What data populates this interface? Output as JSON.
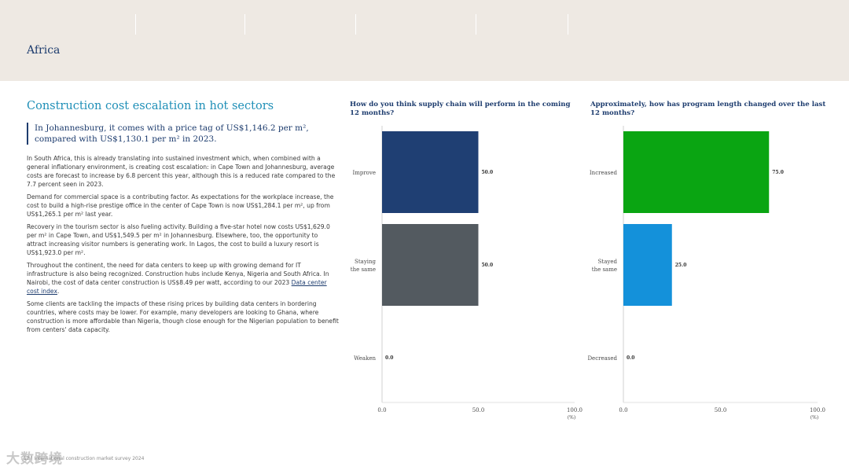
{
  "header": {
    "region": "Africa"
  },
  "article": {
    "section_title": "Construction cost escalation in hot sectors",
    "pull_quote": "In Johannesburg, it comes with a price tag of US$1,146.2 per m², compared with US$1,130.1 per m² in 2023.",
    "paragraphs": [
      "In South Africa, this is already translating into sustained investment which, when combined with a general inflationary environment, is creating cost escalation: in Cape Town and Johannesburg, average costs are forecast to increase by 6.8 percent this year, although this is a reduced rate compared to the 7.7 percent seen in 2023.",
      "Demand for commercial space is a contributing factor. As expectations for the workplace increase, the cost to build a high-rise prestige office in the center of Cape Town is now US$1,284.1 per m², up from US$1,265.1 per m² last year.",
      "Recovery in the tourism sector is also fueling activity. Building a five-star hotel now costs US$1,629.0 per m² in Cape Town, and US$1,549.5 per m² in Johannesburg. Elsewhere, too, the opportunity to attract increasing visitor numbers is generating work. In Lagos, the cost to build a luxury resort is US$1,923.0 per m².",
      "Some clients are tackling the impacts of these rising prices by building data centers in bordering countries, where costs may be lower. For example, many developers are looking to Ghana, where construction is more affordable than Nigeria, though close enough for the Nigerian population to benefit from centers' data capacity."
    ],
    "paragraph_link": {
      "before": "Throughout the continent, the need for data centers to keep up with growing demand for IT infrastructure is also being recognized. Construction hubs include Kenya, Nigeria and South Africa. In Nairobi, the cost of data center construction is US$8.49 per watt, according to our 2023 ",
      "link_text": "Data center cost index",
      "after": "."
    }
  },
  "footer": {
    "text": "12 | International construction market survey 2024",
    "watermark": "大数跨境"
  },
  "chart_data": [
    {
      "type": "bar",
      "orientation": "horizontal",
      "title": "How do you think supply chain will perform  in the coming 12 months?",
      "categories": [
        "Improve",
        "Staying the same",
        "Weaken"
      ],
      "category_lines": [
        [
          "Improve"
        ],
        [
          "Staying",
          "the same"
        ],
        [
          "Weaken"
        ]
      ],
      "values": [
        50.0,
        50.0,
        0.0
      ],
      "colors": [
        "#1f3f73",
        "#535a60",
        "#1f3f73"
      ],
      "xlim": [
        0,
        100
      ],
      "xticks": [
        0.0,
        50.0,
        100.0
      ],
      "unit": "(%)",
      "grid": false
    },
    {
      "type": "bar",
      "orientation": "horizontal",
      "title": "Approximately, how has program length changed over the last 12 months?",
      "categories": [
        "Increased",
        "Stayed the same",
        "Decreased"
      ],
      "category_lines": [
        [
          "Increased"
        ],
        [
          "Stayed",
          "the same"
        ],
        [
          "Decreased"
        ]
      ],
      "values": [
        75.0,
        25.0,
        0.0
      ],
      "colors": [
        "#0aa512",
        "#1491da",
        "#0aa512"
      ],
      "xlim": [
        0,
        100
      ],
      "xticks": [
        0.0,
        50.0,
        100.0
      ],
      "unit": "(%)",
      "grid": false
    }
  ]
}
